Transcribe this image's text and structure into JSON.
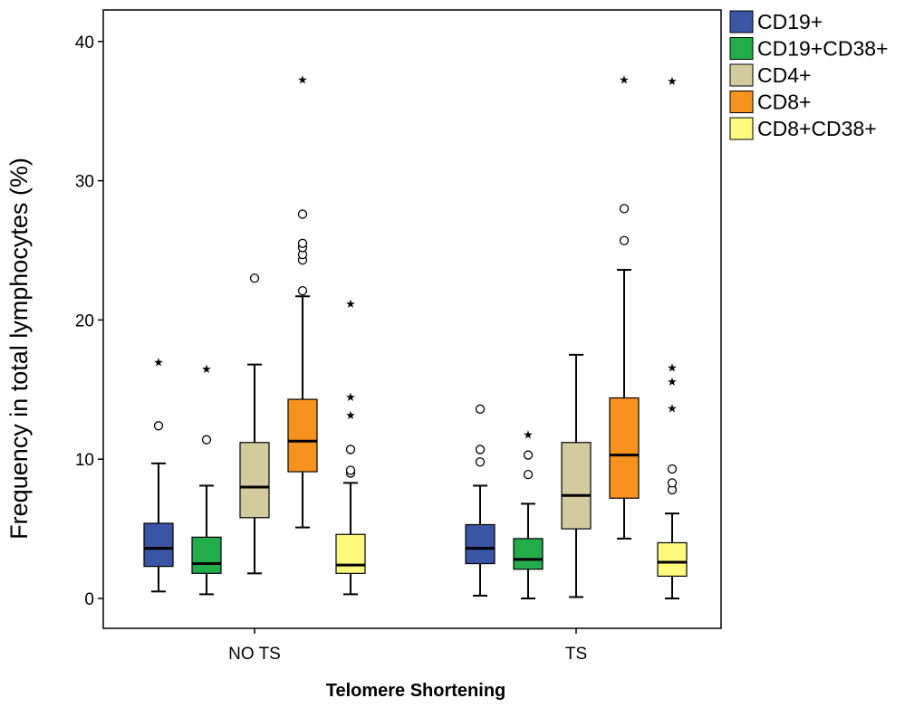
{
  "chart_data": {
    "type": "boxplot",
    "title": "",
    "xlabel": "Telomere Shortening",
    "ylabel": "Frequency in total lymphocytes (%)",
    "ylim": [
      -2,
      43
    ],
    "yticks": [
      0,
      10,
      20,
      30,
      40
    ],
    "categories": [
      "NO TS",
      "TS"
    ],
    "series": [
      {
        "name": "CD19+",
        "color": "#3a55a4",
        "boxes": [
          {
            "min": 0.5,
            "q1": 2.3,
            "median": 3.6,
            "q3": 5.4,
            "max": 9.7,
            "outliers": [
              12.4
            ],
            "extremes": [
              17.0
            ]
          },
          {
            "min": 0.2,
            "q1": 2.5,
            "median": 3.6,
            "q3": 5.3,
            "max": 8.1,
            "outliers": [
              9.8,
              10.7,
              13.6
            ],
            "extremes": []
          }
        ]
      },
      {
        "name": "CD19+CD38+",
        "color": "#23ac4a",
        "boxes": [
          {
            "min": 0.3,
            "q1": 1.8,
            "median": 2.5,
            "q3": 4.4,
            "max": 8.1,
            "outliers": [
              11.4
            ],
            "extremes": [
              16.5
            ]
          },
          {
            "min": 0.0,
            "q1": 2.1,
            "median": 2.8,
            "q3": 4.3,
            "max": 6.8,
            "outliers": [
              8.9,
              10.3
            ],
            "extremes": [
              11.8
            ]
          }
        ]
      },
      {
        "name": "CD4+",
        "color": "#d2cb9e",
        "boxes": [
          {
            "min": 1.8,
            "q1": 5.8,
            "median": 8.0,
            "q3": 11.2,
            "max": 16.8,
            "outliers": [
              23.0
            ],
            "extremes": []
          },
          {
            "min": 0.1,
            "q1": 5.0,
            "median": 7.4,
            "q3": 11.2,
            "max": 17.5,
            "outliers": [],
            "extremes": []
          }
        ]
      },
      {
        "name": "CD8+",
        "color": "#f7921e",
        "boxes": [
          {
            "min": 5.1,
            "q1": 9.1,
            "median": 11.3,
            "q3": 14.3,
            "max": 21.7,
            "outliers": [
              22.1,
              24.3,
              24.7,
              25.2,
              25.5,
              27.6
            ],
            "extremes": [
              37.3
            ]
          },
          {
            "min": 4.3,
            "q1": 7.2,
            "median": 10.3,
            "q3": 14.4,
            "max": 23.6,
            "outliers": [
              25.7,
              28.0
            ],
            "extremes": [
              37.3
            ]
          }
        ]
      },
      {
        "name": "CD8+CD38+",
        "color": "#fdfa7d",
        "boxes": [
          {
            "min": 0.3,
            "q1": 1.8,
            "median": 2.4,
            "q3": 4.6,
            "max": 8.3,
            "outliers": [
              9.0,
              9.2,
              10.7
            ],
            "extremes": [
              13.2,
              14.5,
              21.2
            ]
          },
          {
            "min": 0.0,
            "q1": 1.6,
            "median": 2.6,
            "q3": 4.0,
            "max": 6.1,
            "outliers": [
              7.8,
              8.3,
              9.3
            ],
            "extremes": [
              13.7,
              15.6,
              16.6,
              37.2
            ]
          }
        ]
      }
    ]
  }
}
